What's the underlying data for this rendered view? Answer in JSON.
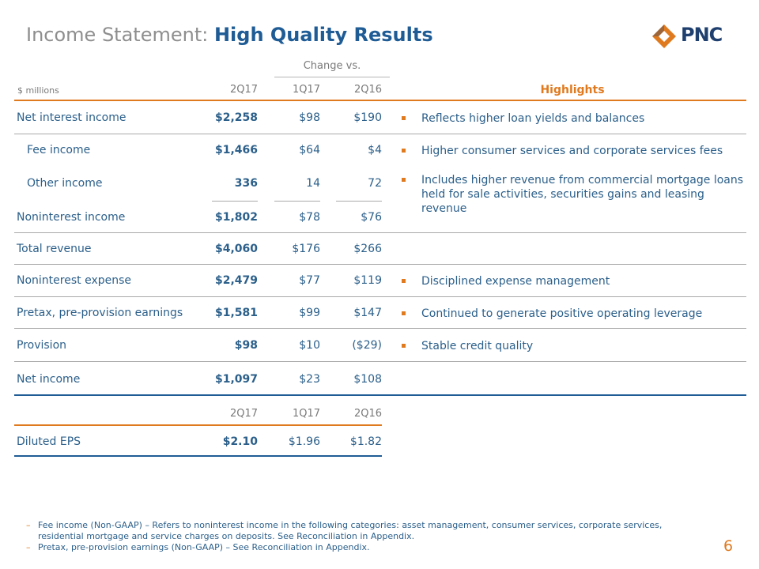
{
  "title": {
    "light": "Income Statement: ",
    "bold": "High Quality Results"
  },
  "logo": {
    "text": "PNC"
  },
  "table": {
    "change_vs": "Change vs.",
    "units": "$ millions",
    "col_headers": [
      "2Q17",
      "1Q17",
      "2Q16"
    ],
    "highlights_header": "Highlights",
    "rows": [
      {
        "label": "Net interest income",
        "values": [
          "$2,258",
          "$98",
          "$190"
        ]
      },
      {
        "label": "Fee income",
        "values": [
          "$1,466",
          "$64",
          "$4"
        ]
      },
      {
        "label": "Other income",
        "values": [
          "336",
          "14",
          "72"
        ]
      },
      {
        "label": "Noninterest income",
        "values": [
          "$1,802",
          "$78",
          "$76"
        ]
      },
      {
        "label": "Total revenue",
        "values": [
          "$4,060",
          "$176",
          "$266"
        ]
      },
      {
        "label": "Noninterest expense",
        "values": [
          "$2,479",
          "$77",
          "$119"
        ]
      },
      {
        "label": "Pretax, pre-provision earnings",
        "values": [
          "$1,581",
          "$99",
          "$147"
        ]
      },
      {
        "label": "Provision",
        "values": [
          "$98",
          "$10",
          "($29)"
        ]
      },
      {
        "label": "Net income",
        "values": [
          "$1,097",
          "$23",
          "$108"
        ]
      }
    ],
    "highlights": [
      "Reflects higher loan yields and balances",
      "Higher consumer services and corporate services fees",
      "Includes higher revenue from commercial mortgage loans held for sale activities, securities gains and leasing revenue",
      "Disciplined expense management",
      "Continued to generate positive operating leverage",
      "Stable credit quality"
    ]
  },
  "eps": {
    "col_headers": [
      "2Q17",
      "1Q17",
      "2Q16"
    ],
    "label": "Diluted EPS",
    "values": [
      "$2.10",
      "$1.96",
      "$1.82"
    ]
  },
  "footnotes": [
    "Fee income (Non-GAAP) – Refers to noninterest income in the following categories: asset management, consumer services, corporate services, residential mortgage and service charges on deposits. See Reconciliation in Appendix.",
    "Pretax, pre-provision earnings (Non-GAAP) – See Reconciliation in Appendix."
  ],
  "page_number": "6",
  "colors": {
    "orange": "#e07a1f",
    "blue": "#1f5c95",
    "text": "#2b5f8a",
    "grey": "#8e8e8e"
  }
}
